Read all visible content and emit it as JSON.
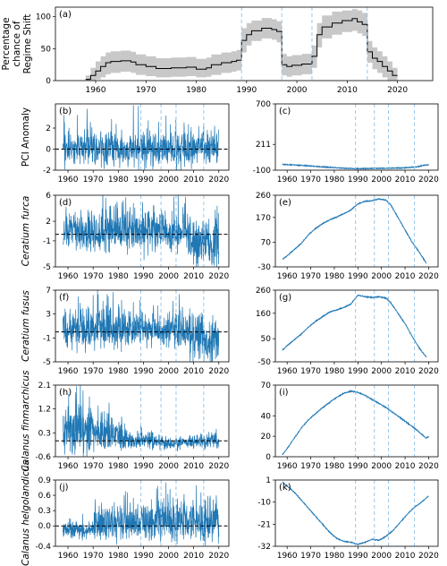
{
  "chart_data": [
    {
      "id": "a",
      "panel_label": "(a)",
      "type": "line",
      "ylabel": [
        "Percentage",
        "chance of",
        "Regime Shift"
      ],
      "xlim": [
        1952,
        2027
      ],
      "ylim": [
        0,
        115
      ],
      "xticks": [
        1960,
        1970,
        1980,
        1990,
        2000,
        2010,
        2020
      ],
      "yticks": [
        0,
        50,
        100
      ],
      "regime_shift_years": [
        1989,
        1997,
        2003,
        2014
      ],
      "series": [
        {
          "kind": "step_median",
          "x": [
            1958,
            1959,
            1960,
            1961,
            1962,
            1963,
            1965,
            1967,
            1968,
            1970,
            1972,
            1975,
            1978,
            1980,
            1982,
            1983,
            1985,
            1987,
            1988,
            1989,
            1990,
            1991,
            1993,
            1995,
            1996,
            1997,
            1998,
            1999,
            2001,
            2003,
            2004,
            2005,
            2007,
            2009,
            2011,
            2012,
            2013,
            2014,
            2015,
            2016,
            2017,
            2018,
            2019
          ],
          "y": [
            2,
            8,
            15,
            22,
            28,
            30,
            31,
            29,
            25,
            22,
            19,
            20,
            21,
            18,
            20,
            25,
            28,
            30,
            32,
            63,
            72,
            78,
            82,
            80,
            77,
            25,
            22,
            24,
            26,
            38,
            72,
            84,
            90,
            94,
            97,
            92,
            88,
            45,
            35,
            30,
            22,
            15,
            8
          ]
        },
        {
          "kind": "uncertainty_band",
          "x": [
            1958,
            1959,
            1960,
            1961,
            1962,
            1963,
            1965,
            1967,
            1968,
            1970,
            1972,
            1975,
            1978,
            1980,
            1982,
            1983,
            1985,
            1987,
            1988,
            1989,
            1990,
            1991,
            1993,
            1995,
            1996,
            1997,
            1998,
            1999,
            2001,
            2003,
            2004,
            2005,
            2007,
            2009,
            2011,
            2012,
            2013,
            2014,
            2015,
            2016,
            2017,
            2018,
            2019
          ],
          "lower": [
            0,
            0,
            2,
            5,
            10,
            12,
            14,
            12,
            9,
            7,
            5,
            6,
            7,
            5,
            6,
            9,
            12,
            14,
            16,
            44,
            55,
            62,
            66,
            64,
            60,
            8,
            6,
            8,
            10,
            20,
            52,
            66,
            72,
            76,
            78,
            74,
            70,
            28,
            18,
            12,
            5,
            0,
            0
          ],
          "upper": [
            8,
            20,
            30,
            38,
            44,
            46,
            47,
            45,
            41,
            38,
            35,
            36,
            37,
            34,
            36,
            41,
            44,
            46,
            48,
            82,
            90,
            94,
            98,
            96,
            93,
            42,
            38,
            40,
            42,
            55,
            90,
            102,
            108,
            110,
            112,
            110,
            106,
            62,
            52,
            46,
            38,
            30,
            20
          ]
        }
      ]
    },
    {
      "id": "b",
      "panel_label": "(b)",
      "type": "line",
      "ylabel": [
        "PCI Anomaly"
      ],
      "xlim": [
        1955,
        2024
      ],
      "ylim": [
        -2,
        4.3
      ],
      "xticks": [
        1960,
        1970,
        1980,
        1990,
        2000,
        2010,
        2020
      ],
      "yticks": [
        -2,
        0,
        2
      ],
      "zero_line": 0,
      "regime_shift_years": [
        1989,
        1997,
        2003,
        2014
      ],
      "series": [
        {
          "kind": "monthly_anomaly",
          "x_start": 1958,
          "x_end": 2020,
          "baseline": [
            0
          ],
          "amplitude": [
            0.9
          ],
          "peak_points": [
            [
              1986,
              4.2
            ],
            [
              1988,
              4.1
            ],
            [
              1996,
              2.6
            ],
            [
              1999,
              3.2
            ],
            [
              1993,
              -1.6
            ],
            [
              2004,
              -1.4
            ],
            [
              2012,
              2.2
            ]
          ]
        }
      ]
    },
    {
      "id": "c",
      "panel_label": "(c)",
      "type": "line",
      "ylabel": [],
      "xlim": [
        1955,
        2024
      ],
      "ylim": [
        -100,
        700
      ],
      "xticks": [
        1960,
        1970,
        1980,
        1990,
        2000,
        2010,
        2020
      ],
      "yticks": [
        -100,
        211,
        700
      ],
      "regime_shift_years": [
        1989,
        1997,
        2003,
        2014
      ],
      "series": [
        {
          "kind": "cumulative",
          "x": [
            1958,
            1965,
            1970,
            1975,
            1980,
            1985,
            1990,
            1995,
            2000,
            2005,
            2010,
            2015,
            2018,
            2020
          ],
          "y": [
            -30,
            -40,
            -50,
            -60,
            -70,
            -78,
            -82,
            -80,
            -78,
            -75,
            -72,
            -60,
            -40,
            -35
          ]
        }
      ]
    },
    {
      "id": "d",
      "panel_label": "(d)",
      "type": "line",
      "ylabel": [
        "Ceratium furca"
      ],
      "xlim": [
        1955,
        2024
      ],
      "ylim": [
        -5,
        6
      ],
      "xticks": [
        1960,
        1970,
        1980,
        1990,
        2000,
        2010,
        2020
      ],
      "yticks": [
        -5,
        -1,
        2,
        6
      ],
      "zero_line": 0,
      "regime_shift_years": [
        1989,
        1997,
        2003,
        2014
      ],
      "series": [
        {
          "kind": "monthly_anomaly",
          "x_start": 1958,
          "x_end": 2020,
          "baseline": [
            0.3,
            0.3,
            0.4,
            0.2,
            -1.5
          ],
          "amplitude": [
            1.6,
            1.8,
            1.8,
            1.6,
            2.0
          ],
          "peak_points": [
            [
              1975,
              5.6
            ],
            [
              1982,
              5.2
            ],
            [
              1986,
              4.8
            ],
            [
              1994,
              4.5
            ],
            [
              2010,
              -4.6
            ]
          ]
        }
      ]
    },
    {
      "id": "e",
      "panel_label": "(e)",
      "type": "line",
      "ylabel": [],
      "xlim": [
        1955,
        2024
      ],
      "ylim": [
        -30,
        260
      ],
      "xticks": [
        1960,
        1970,
        1980,
        1990,
        2000,
        2010,
        2020
      ],
      "yticks": [
        -30,
        70,
        170,
        260
      ],
      "regime_shift_years": [
        1989,
        1997,
        2003,
        2014
      ],
      "series": [
        {
          "kind": "cumulative",
          "x": [
            1958,
            1960,
            1963,
            1966,
            1969,
            1972,
            1975,
            1978,
            1981,
            1984,
            1987,
            1990,
            1993,
            1996,
            1999,
            2002,
            2004,
            2007,
            2010,
            2013,
            2016,
            2019
          ],
          "y": [
            0,
            15,
            40,
            65,
            100,
            125,
            145,
            160,
            172,
            185,
            200,
            225,
            235,
            238,
            245,
            240,
            220,
            170,
            120,
            70,
            30,
            -15
          ]
        }
      ]
    },
    {
      "id": "f",
      "panel_label": "(f)",
      "type": "line",
      "ylabel": [
        "Ceratium fusus"
      ],
      "xlim": [
        1955,
        2024
      ],
      "ylim": [
        -5,
        7
      ],
      "xticks": [
        1960,
        1970,
        1980,
        1990,
        2000,
        2010,
        2020
      ],
      "yticks": [
        -5,
        -1,
        3,
        7
      ],
      "zero_line": 0,
      "regime_shift_years": [
        1989,
        1997,
        2003,
        2014
      ],
      "series": [
        {
          "kind": "monthly_anomaly",
          "x_start": 1958,
          "x_end": 2020,
          "baseline": [
            0.6,
            0.6,
            0.4,
            0.2,
            -1.3
          ],
          "amplitude": [
            1.8,
            1.8,
            1.6,
            1.6,
            2.0
          ],
          "peak_points": [
            [
              1972,
              6.3
            ],
            [
              1976,
              6.0
            ],
            [
              1986,
              5.0
            ],
            [
              1994,
              4.5
            ],
            [
              2012,
              -4.6
            ]
          ]
        }
      ]
    },
    {
      "id": "g",
      "panel_label": "(g)",
      "type": "line",
      "ylabel": [],
      "xlim": [
        1955,
        2024
      ],
      "ylim": [
        -50,
        260
      ],
      "xticks": [
        1960,
        1970,
        1980,
        1990,
        2000,
        2010,
        2020
      ],
      "yticks": [
        -50,
        50,
        160,
        260
      ],
      "regime_shift_years": [
        1989,
        1997,
        2003,
        2014
      ],
      "series": [
        {
          "kind": "cumulative",
          "x": [
            1958,
            1960,
            1963,
            1966,
            1969,
            1972,
            1975,
            1978,
            1981,
            1984,
            1987,
            1990,
            1993,
            1996,
            1999,
            2002,
            2004,
            2007,
            2010,
            2013,
            2016,
            2019
          ],
          "y": [
            0,
            20,
            45,
            70,
            100,
            125,
            145,
            165,
            175,
            185,
            200,
            238,
            232,
            228,
            232,
            225,
            205,
            160,
            115,
            60,
            10,
            -30
          ]
        }
      ]
    },
    {
      "id": "h",
      "panel_label": "(h)",
      "type": "line",
      "ylabel": [
        "Calanus finmarchicus"
      ],
      "xlim": [
        1955,
        2024
      ],
      "ylim": [
        -0.6,
        2.1
      ],
      "xticks": [
        1960,
        1970,
        1980,
        1990,
        2000,
        2010,
        2020
      ],
      "yticks": [
        -0.6,
        0.3,
        1.2,
        2.1
      ],
      "zero_line": 0,
      "regime_shift_years": [
        1989,
        1997,
        2003,
        2014
      ],
      "series": [
        {
          "kind": "monthly_anomaly",
          "x_start": 1958,
          "x_end": 2020,
          "baseline": [
            0.35,
            0.25,
            0.0,
            -0.1,
            -0.05
          ],
          "amplitude": [
            0.5,
            0.35,
            0.18,
            0.12,
            0.15
          ],
          "peak_points": [
            [
              1966,
              1.9
            ],
            [
              1960,
              1.3
            ],
            [
              1963,
              1.5
            ],
            [
              2019,
              0.45
            ]
          ]
        }
      ]
    },
    {
      "id": "i",
      "panel_label": "(i)",
      "type": "line",
      "ylabel": [],
      "xlim": [
        1955,
        2024
      ],
      "ylim": [
        0,
        70
      ],
      "xticks": [
        1960,
        1970,
        1980,
        1990,
        2000,
        2010,
        2020
      ],
      "yticks": [
        0,
        20,
        40,
        70
      ],
      "regime_shift_years": [
        1989,
        1997,
        2003,
        2014
      ],
      "series": [
        {
          "kind": "cumulative",
          "x": [
            1958,
            1960,
            1963,
            1966,
            1969,
            1972,
            1975,
            1978,
            1981,
            1984,
            1987,
            1990,
            1993,
            1996,
            1999,
            2002,
            2005,
            2008,
            2011,
            2014,
            2017,
            2019,
            2020
          ],
          "y": [
            2,
            8,
            18,
            28,
            36,
            42,
            48,
            53,
            58,
            62,
            64,
            63,
            60,
            56,
            52,
            48,
            43,
            38,
            33,
            28,
            22,
            18,
            20
          ]
        }
      ]
    },
    {
      "id": "j",
      "panel_label": "(j)",
      "type": "line",
      "ylabel": [
        "Calanus helgolandicus"
      ],
      "xlim": [
        1955,
        2024
      ],
      "ylim": [
        -0.4,
        0.9
      ],
      "xticks": [
        1960,
        1970,
        1980,
        1990,
        2000,
        2010,
        2020
      ],
      "yticks": [
        -0.4,
        0.0,
        0.3,
        0.6,
        0.9
      ],
      "zero_line": 0,
      "regime_shift_years": [
        1989,
        1997,
        2003,
        2014
      ],
      "series": [
        {
          "kind": "monthly_anomaly",
          "x_start": 1958,
          "x_end": 2020,
          "baseline": [
            -0.08,
            0.05,
            0.08,
            0.1,
            0.08
          ],
          "amplitude": [
            0.08,
            0.18,
            0.2,
            0.22,
            0.2
          ],
          "peak_points": [
            [
              1999,
              0.85
            ],
            [
              2011,
              0.8
            ],
            [
              2019,
              0.6
            ],
            [
              1986,
              0.55
            ]
          ]
        }
      ]
    },
    {
      "id": "k",
      "panel_label": "(k)",
      "type": "line",
      "ylabel": [],
      "xlim": [
        1955,
        2024
      ],
      "ylim": [
        -32,
        1
      ],
      "xticks": [
        1960,
        1970,
        1980,
        1990,
        2000,
        2010,
        2020
      ],
      "yticks": [
        -32,
        -21,
        -10,
        1
      ],
      "regime_shift_years": [
        1989,
        1997,
        2003,
        2014
      ],
      "series": [
        {
          "kind": "cumulative",
          "x": [
            1958,
            1960,
            1963,
            1966,
            1969,
            1972,
            1975,
            1978,
            1981,
            1984,
            1987,
            1990,
            1993,
            1996,
            1999,
            2002,
            2005,
            2008,
            2011,
            2014,
            2017,
            2019,
            2020
          ],
          "y": [
            0,
            -2,
            -5,
            -9,
            -13,
            -17,
            -21,
            -25,
            -28,
            -29.5,
            -30,
            -31,
            -30,
            -28.5,
            -29,
            -27,
            -24,
            -20,
            -16,
            -12.5,
            -10,
            -8,
            -7
          ]
        }
      ]
    }
  ]
}
